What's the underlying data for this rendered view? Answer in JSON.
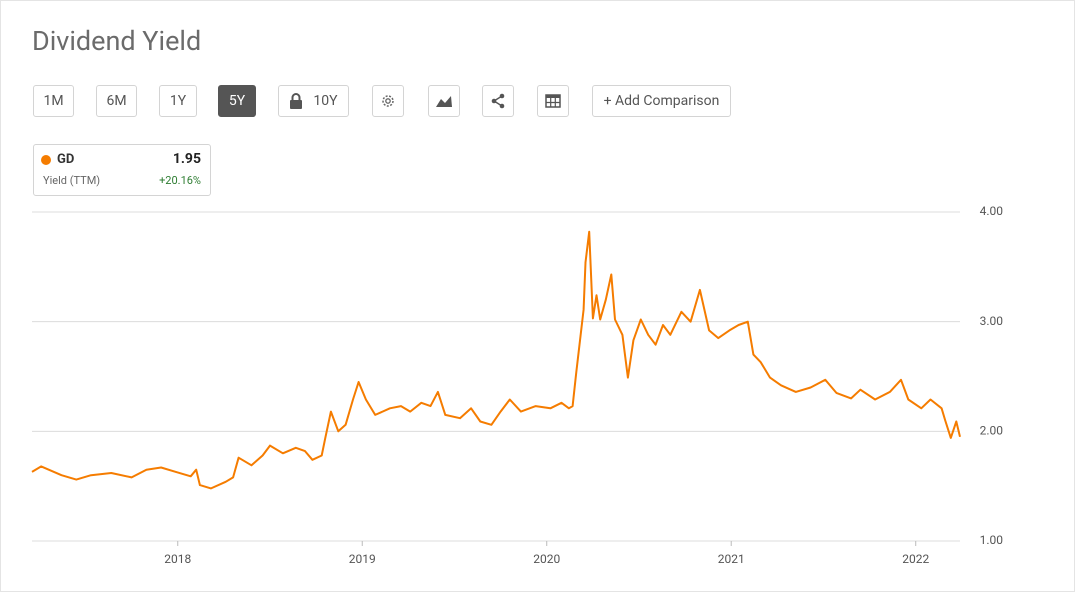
{
  "header": {
    "title": "Dividend Yield"
  },
  "toolbar": {
    "buttons": [
      "1M",
      "6M",
      "1Y",
      "5Y",
      "10Y",
      "+ Add Comparison"
    ]
  },
  "legend": {
    "value": "1.95",
    "metric": "Yield (TTM)",
    "change": "+20.16%"
  },
  "chart_data": {
    "type": "line",
    "grid": true,
    "xlim": [
      2017.21,
      2022.24
    ],
    "xticks": [
      2018,
      2019,
      2020,
      2021,
      2022
    ],
    "ylim": [
      1,
      4
    ],
    "yticks": [
      {
        "value": 1,
        "label": "1.00"
      },
      {
        "value": 2,
        "label": "2.00"
      },
      {
        "value": 3,
        "label": "3.00"
      },
      {
        "value": 4,
        "label": "4.00"
      }
    ],
    "series": [
      {
        "name": "GD",
        "color": "#f57c00",
        "x": [
          2017.21,
          2017.26,
          2017.37,
          2017.45,
          2017.53,
          2017.64,
          2017.75,
          2017.83,
          2017.91,
          2017.99,
          2018.07,
          2018.1,
          2018.12,
          2018.18,
          2018.26,
          2018.3,
          2018.33,
          2018.4,
          2018.46,
          2018.5,
          2018.57,
          2018.64,
          2018.69,
          2018.73,
          2018.78,
          2018.8,
          2018.83,
          2018.87,
          2018.91,
          2018.95,
          2018.98,
          2019.02,
          2019.07,
          2019.15,
          2019.21,
          2019.26,
          2019.32,
          2019.37,
          2019.41,
          2019.45,
          2019.53,
          2019.59,
          2019.64,
          2019.7,
          2019.75,
          2019.8,
          2019.86,
          2019.94,
          2020.02,
          2020.08,
          2020.12,
          2020.14,
          2020.16,
          2020.2,
          2020.21,
          2020.23,
          2020.25,
          2020.27,
          2020.29,
          2020.32,
          2020.35,
          2020.37,
          2020.41,
          2020.44,
          2020.47,
          2020.51,
          2020.55,
          2020.59,
          2020.63,
          2020.67,
          2020.73,
          2020.78,
          2020.83,
          2020.88,
          2020.93,
          2020.99,
          2021.04,
          2021.09,
          2021.12,
          2021.16,
          2021.21,
          2021.27,
          2021.35,
          2021.43,
          2021.51,
          2021.57,
          2021.65,
          2021.7,
          2021.78,
          2021.86,
          2021.92,
          2021.96,
          2022.03,
          2022.08,
          2022.14,
          2022.16,
          2022.19,
          2022.22,
          2022.24
        ],
        "values": [
          1.63,
          1.68,
          1.6,
          1.56,
          1.6,
          1.62,
          1.58,
          1.65,
          1.67,
          1.63,
          1.59,
          1.65,
          1.51,
          1.48,
          1.54,
          1.58,
          1.76,
          1.69,
          1.78,
          1.87,
          1.8,
          1.85,
          1.82,
          1.74,
          1.78,
          1.94,
          2.18,
          2.0,
          2.06,
          2.29,
          2.45,
          2.29,
          2.15,
          2.21,
          2.23,
          2.18,
          2.26,
          2.23,
          2.36,
          2.15,
          2.12,
          2.21,
          2.09,
          2.06,
          2.18,
          2.29,
          2.18,
          2.23,
          2.21,
          2.26,
          2.21,
          2.23,
          2.54,
          3.11,
          3.54,
          3.82,
          3.03,
          3.24,
          3.02,
          3.2,
          3.43,
          3.02,
          2.88,
          2.49,
          2.83,
          3.02,
          2.88,
          2.79,
          2.97,
          2.88,
          3.09,
          3.0,
          3.29,
          2.92,
          2.85,
          2.92,
          2.97,
          3.0,
          2.7,
          2.63,
          2.49,
          2.42,
          2.36,
          2.4,
          2.47,
          2.35,
          2.3,
          2.38,
          2.29,
          2.36,
          2.47,
          2.29,
          2.21,
          2.29,
          2.21,
          2.1,
          1.94,
          2.09,
          1.95
        ]
      }
    ]
  }
}
